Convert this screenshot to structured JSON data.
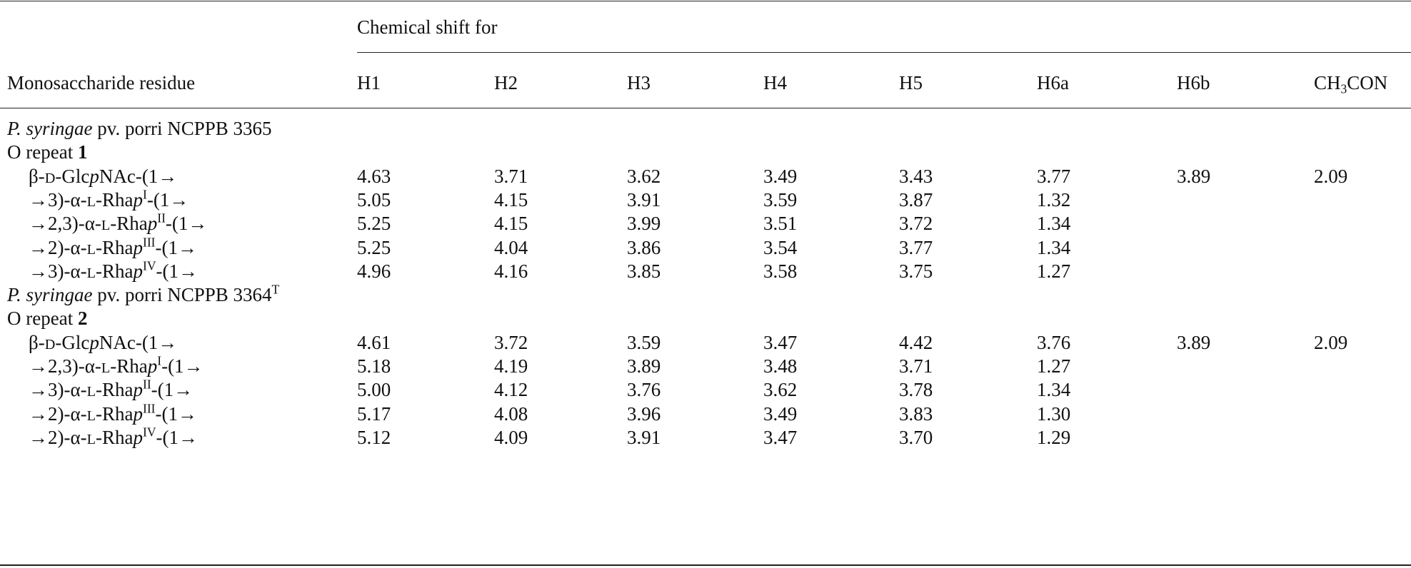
{
  "table": {
    "header": {
      "group": "Chemical shift for",
      "first": "Monosaccharide residue",
      "columns": [
        {
          "text": "H1"
        },
        {
          "text": "H2"
        },
        {
          "text": "H3"
        },
        {
          "text": "H4"
        },
        {
          "text": "H5"
        },
        {
          "text": "H6a"
        },
        {
          "text": "H6b"
        },
        {
          "text": "CH",
          "sub": "3",
          "rest": "CON"
        }
      ]
    },
    "groups": [
      {
        "strain": {
          "species": "P. syringae",
          "name": "pv. porri NCPPB 3365"
        },
        "repeat": {
          "label": "O repeat",
          "number": "1"
        },
        "rows": [
          {
            "residue": {
              "prefix": "β-",
              "config": "D",
              "sugar": "-Glc",
              "ring": "p",
              "suffix": "NAc-(1→"
            },
            "values": [
              "4.63",
              "3.71",
              "3.62",
              "3.49",
              "3.43",
              "3.77",
              "3.89",
              "2.09"
            ]
          },
          {
            "residue": {
              "prefix": "→3)-α-",
              "config": "L",
              "sugar": "-Rha",
              "ring": "p",
              "sup": "I",
              "suffix": "-(1→"
            },
            "values": [
              "5.05",
              "4.15",
              "3.91",
              "3.59",
              "3.87",
              "1.32"
            ]
          },
          {
            "residue": {
              "prefix": "→2,3)-α-",
              "config": "L",
              "sugar": "-Rha",
              "ring": "p",
              "sup": "II",
              "suffix": "-(1→"
            },
            "values": [
              "5.25",
              "4.15",
              "3.99",
              "3.51",
              "3.72",
              "1.34"
            ]
          },
          {
            "residue": {
              "prefix": "→2)-α-",
              "config": "L",
              "sugar": "-Rha",
              "ring": "p",
              "sup": "III",
              "suffix": "-(1→"
            },
            "values": [
              "5.25",
              "4.04",
              "3.86",
              "3.54",
              "3.77",
              "1.34"
            ]
          },
          {
            "residue": {
              "prefix": "→3)-α-",
              "config": "L",
              "sugar": "-Rha",
              "ring": "p",
              "sup": "IV",
              "suffix": "-(1→"
            },
            "values": [
              "4.96",
              "4.16",
              "3.85",
              "3.58",
              "3.75",
              "1.27"
            ]
          }
        ]
      },
      {
        "strain": {
          "species": "P. syringae",
          "name": "pv. porri NCPPB 3364",
          "sup": "T"
        },
        "repeat": {
          "label": "O repeat",
          "number": "2"
        },
        "rows": [
          {
            "residue": {
              "prefix": "β-",
              "config": "D",
              "sugar": "-Glc",
              "ring": "p",
              "suffix": "NAc-(1→"
            },
            "values": [
              "4.61",
              "3.72",
              "3.59",
              "3.47",
              "4.42",
              "3.76",
              "3.89",
              "2.09"
            ]
          },
          {
            "residue": {
              "prefix": "→2,3)-α-",
              "config": "L",
              "sugar": "-Rha",
              "ring": "p",
              "sup": "I",
              "suffix": "-(1→"
            },
            "values": [
              "5.18",
              "4.19",
              "3.89",
              "3.48",
              "3.71",
              "1.27"
            ]
          },
          {
            "residue": {
              "prefix": "→3)-α-",
              "config": "L",
              "sugar": "-Rha",
              "ring": "p",
              "sup": "II",
              "suffix": "-(1→"
            },
            "values": [
              "5.00",
              "4.12",
              "3.76",
              "3.62",
              "3.78",
              "1.34"
            ]
          },
          {
            "residue": {
              "prefix": "→2)-α-",
              "config": "L",
              "sugar": "-Rha",
              "ring": "p",
              "sup": "III",
              "suffix": "-(1→"
            },
            "values": [
              "5.17",
              "4.08",
              "3.96",
              "3.49",
              "3.83",
              "1.30"
            ]
          },
          {
            "residue": {
              "prefix": "→2)-α-",
              "config": "L",
              "sugar": "-Rha",
              "ring": "p",
              "sup": "IV",
              "suffix": "-(1→"
            },
            "values": [
              "5.12",
              "4.09",
              "3.91",
              "3.47",
              "3.70",
              "1.29"
            ]
          }
        ]
      }
    ]
  }
}
